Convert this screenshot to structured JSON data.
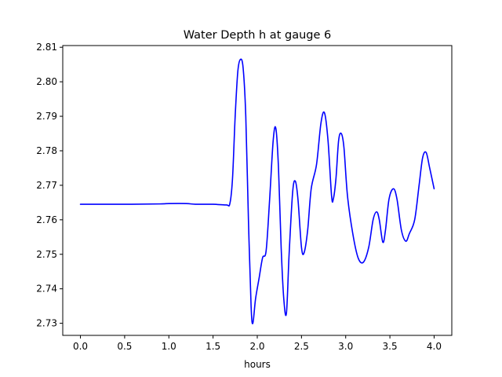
{
  "chart_data": {
    "type": "line",
    "title": "Water Depth h at gauge 6",
    "xlabel": "hours",
    "ylabel": "",
    "xlim": [
      -0.2,
      4.2
    ],
    "ylim": [
      2.7265,
      2.8105
    ],
    "grid": false,
    "xticks": [
      0.0,
      0.5,
      1.0,
      1.5,
      2.0,
      2.5,
      3.0,
      3.5,
      4.0
    ],
    "xtick_labels": [
      "0.0",
      "0.5",
      "1.0",
      "1.5",
      "2.0",
      "2.5",
      "3.0",
      "3.5",
      "4.0"
    ],
    "yticks": [
      2.73,
      2.74,
      2.75,
      2.76,
      2.77,
      2.78,
      2.79,
      2.8,
      2.81
    ],
    "ytick_labels": [
      "2.73",
      "2.74",
      "2.75",
      "2.76",
      "2.77",
      "2.78",
      "2.79",
      "2.80",
      "2.81"
    ],
    "series": [
      {
        "color": "#0000ff",
        "points": [
          [
            0.0,
            2.7645
          ],
          [
            0.5,
            2.7645
          ],
          [
            0.9,
            2.7646
          ],
          [
            1.0,
            2.7647
          ],
          [
            1.2,
            2.7647
          ],
          [
            1.3,
            2.7645
          ],
          [
            1.5,
            2.7645
          ],
          [
            1.65,
            2.7643
          ],
          [
            1.69,
            2.7647
          ],
          [
            1.72,
            2.772
          ],
          [
            1.75,
            2.79
          ],
          [
            1.78,
            2.803
          ],
          [
            1.81,
            2.8065
          ],
          [
            1.84,
            2.804
          ],
          [
            1.87,
            2.79
          ],
          [
            1.9,
            2.76
          ],
          [
            1.93,
            2.735
          ],
          [
            1.95,
            2.73
          ],
          [
            1.98,
            2.737
          ],
          [
            2.02,
            2.743
          ],
          [
            2.06,
            2.749
          ],
          [
            2.1,
            2.751
          ],
          [
            2.14,
            2.766
          ],
          [
            2.18,
            2.783
          ],
          [
            2.21,
            2.7865
          ],
          [
            2.24,
            2.775
          ],
          [
            2.27,
            2.752
          ],
          [
            2.3,
            2.737
          ],
          [
            2.33,
            2.733
          ],
          [
            2.36,
            2.75
          ],
          [
            2.4,
            2.768
          ],
          [
            2.43,
            2.7712
          ],
          [
            2.46,
            2.766
          ],
          [
            2.5,
            2.752
          ],
          [
            2.53,
            2.7505
          ],
          [
            2.57,
            2.757
          ],
          [
            2.61,
            2.769
          ],
          [
            2.67,
            2.776
          ],
          [
            2.72,
            2.788
          ],
          [
            2.76,
            2.791
          ],
          [
            2.8,
            2.783
          ],
          [
            2.84,
            2.767
          ],
          [
            2.86,
            2.766
          ],
          [
            2.89,
            2.772
          ],
          [
            2.92,
            2.783
          ],
          [
            2.95,
            2.785
          ],
          [
            2.98,
            2.781
          ],
          [
            3.02,
            2.767
          ],
          [
            3.08,
            2.756
          ],
          [
            3.14,
            2.749
          ],
          [
            3.2,
            2.7477
          ],
          [
            3.26,
            2.752
          ],
          [
            3.31,
            2.76
          ],
          [
            3.35,
            2.7623
          ],
          [
            3.38,
            2.76
          ],
          [
            3.42,
            2.7535
          ],
          [
            3.45,
            2.757
          ],
          [
            3.49,
            2.766
          ],
          [
            3.54,
            2.769
          ],
          [
            3.58,
            2.766
          ],
          [
            3.63,
            2.757
          ],
          [
            3.68,
            2.7538
          ],
          [
            3.72,
            2.756
          ],
          [
            3.78,
            2.76
          ],
          [
            3.83,
            2.77
          ],
          [
            3.87,
            2.778
          ],
          [
            3.91,
            2.7795
          ],
          [
            3.95,
            2.775
          ],
          [
            4.0,
            2.769
          ]
        ]
      }
    ]
  }
}
